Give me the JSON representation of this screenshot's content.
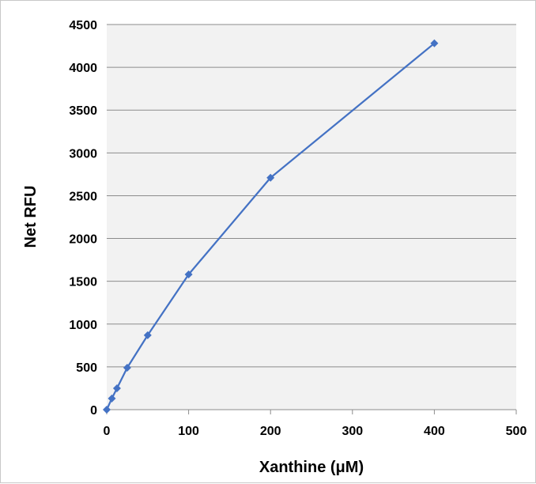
{
  "chart_data": {
    "type": "line",
    "xlabel": "Xanthine (μM)",
    "ylabel": "Net RFU",
    "xlim": [
      0,
      500
    ],
    "ylim": [
      0,
      4500
    ],
    "x_ticks": [
      0,
      100,
      200,
      300,
      400,
      500
    ],
    "y_ticks": [
      0,
      500,
      1000,
      1500,
      2000,
      2500,
      3000,
      3500,
      4000,
      4500
    ],
    "grid": "horizontal",
    "legend": "none",
    "series": [
      {
        "x": [
          0,
          6.25,
          12.5,
          25,
          50,
          100,
          200,
          400
        ],
        "y": [
          0,
          130,
          250,
          490,
          870,
          1580,
          2710,
          4280
        ],
        "color": "#4472C4",
        "marker": "diamond"
      }
    ]
  }
}
